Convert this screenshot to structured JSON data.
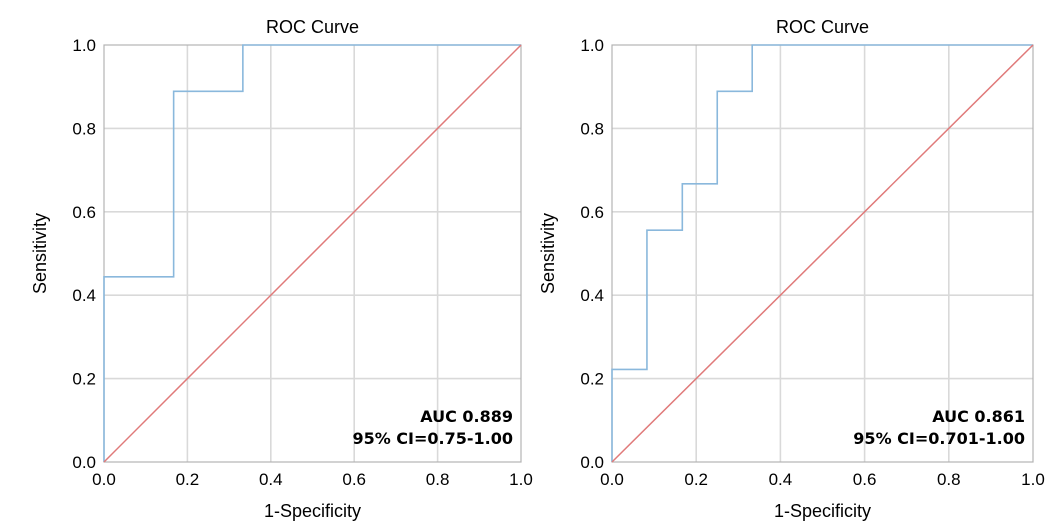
{
  "chart_data": [
    {
      "type": "line",
      "title": "ROC Curve",
      "xlabel": "1-Specificity",
      "ylabel": "Sensitivity",
      "xlim": [
        0,
        1
      ],
      "ylim": [
        0,
        1
      ],
      "xticks": [
        "0.0",
        "0.2",
        "0.4",
        "0.6",
        "0.8",
        "1.0"
      ],
      "yticks": [
        "0.0",
        "0.2",
        "0.4",
        "0.6",
        "0.8",
        "1.0"
      ],
      "grid": true,
      "series": [
        {
          "values": [
            [
              0,
              0
            ],
            [
              0,
              0.444
            ],
            [
              0.167,
              0.444
            ],
            [
              0.167,
              0.889
            ],
            [
              0.333,
              0.889
            ],
            [
              0.333,
              1.0
            ],
            [
              1.0,
              1.0
            ]
          ],
          "color": "#8ab8dc",
          "step": true
        },
        {
          "values": [
            [
              0,
              0
            ],
            [
              1,
              1
            ]
          ],
          "color": "#e07a7a"
        }
      ],
      "annotations": [
        "AUC 0.889",
        "95% CI=0.75-1.00"
      ],
      "annotation_position": "bottom-right"
    },
    {
      "type": "line",
      "title": "ROC Curve",
      "xlabel": "1-Specificity",
      "ylabel": "Sensitivity",
      "xlim": [
        0,
        1
      ],
      "ylim": [
        0,
        1
      ],
      "xticks": [
        "0.0",
        "0.2",
        "0.4",
        "0.6",
        "0.8",
        "1.0"
      ],
      "yticks": [
        "0.0",
        "0.2",
        "0.4",
        "0.6",
        "0.8",
        "1.0"
      ],
      "grid": true,
      "series": [
        {
          "values": [
            [
              0,
              0
            ],
            [
              0,
              0.222
            ],
            [
              0.083,
              0.222
            ],
            [
              0.083,
              0.556
            ],
            [
              0.167,
              0.556
            ],
            [
              0.167,
              0.667
            ],
            [
              0.25,
              0.667
            ],
            [
              0.25,
              0.889
            ],
            [
              0.333,
              0.889
            ],
            [
              0.333,
              1.0
            ],
            [
              1.0,
              1.0
            ]
          ],
          "color": "#8ab8dc",
          "step": true
        },
        {
          "values": [
            [
              0,
              0
            ],
            [
              1,
              1
            ]
          ],
          "color": "#e07a7a"
        }
      ],
      "annotations": [
        "AUC 0.861",
        "95% CI=0.701-1.00"
      ],
      "annotation_position": "bottom-right"
    }
  ]
}
